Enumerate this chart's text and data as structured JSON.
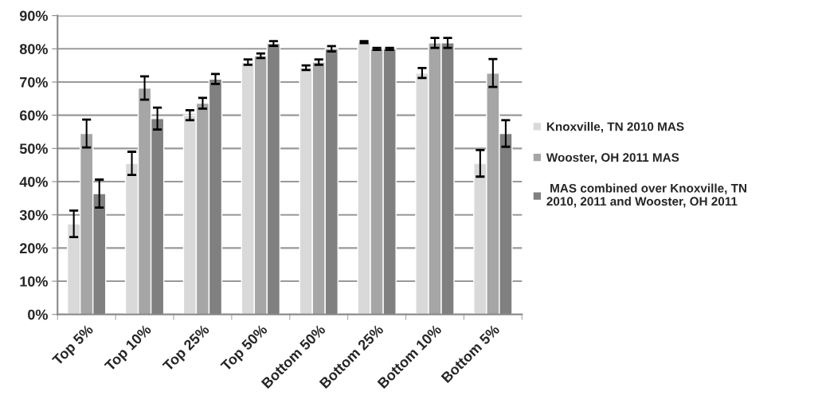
{
  "chart_data": {
    "type": "bar",
    "categories": [
      "Top 5%",
      "Top 10%",
      "Top 25%",
      "Top 50%",
      "Bottom 50%",
      "Bottom 25%",
      "Bottom 10%",
      "Bottom 5%"
    ],
    "series": [
      {
        "name": "Knoxville, TN 2010 MAS",
        "color": "#d9d9d9",
        "values": [
          27.3,
          45.5,
          60,
          76,
          74.3,
          82,
          72.7,
          45.5
        ],
        "errors": [
          4,
          3.5,
          1.5,
          0.8,
          0.7,
          0.3,
          1.5,
          4
        ]
      },
      {
        "name": "Wooster, OH 2011 MAS",
        "color": "#a6a6a6",
        "values": [
          54.5,
          68.2,
          63.6,
          77.9,
          76,
          80,
          81.8,
          72.7
        ],
        "errors": [
          4.2,
          3.5,
          1.6,
          0.7,
          0.8,
          0.3,
          1.5,
          4.2
        ]
      },
      {
        "name": " MAS combined over Knoxville, TN\n2010, 2011 and Wooster, OH 2011",
        "color": "#808080",
        "values": [
          36.4,
          59,
          70.9,
          81.6,
          80,
          80,
          81.8,
          54.5
        ],
        "errors": [
          4.2,
          3.3,
          1.5,
          0.7,
          0.8,
          0.3,
          1.5,
          4
        ]
      }
    ],
    "ylim": [
      0,
      90
    ],
    "yticks": [
      {
        "value": 0,
        "label": "0%"
      },
      {
        "value": 10,
        "label": "10%"
      },
      {
        "value": 20,
        "label": "20%"
      },
      {
        "value": 30,
        "label": "30%"
      },
      {
        "value": 40,
        "label": "40%"
      },
      {
        "value": 50,
        "label": "50%"
      },
      {
        "value": 60,
        "label": "60%"
      },
      {
        "value": 70,
        "label": "70%"
      },
      {
        "value": 80,
        "label": "80%"
      },
      {
        "value": 90,
        "label": "90%"
      }
    ],
    "grid": "y",
    "legend": "right"
  }
}
